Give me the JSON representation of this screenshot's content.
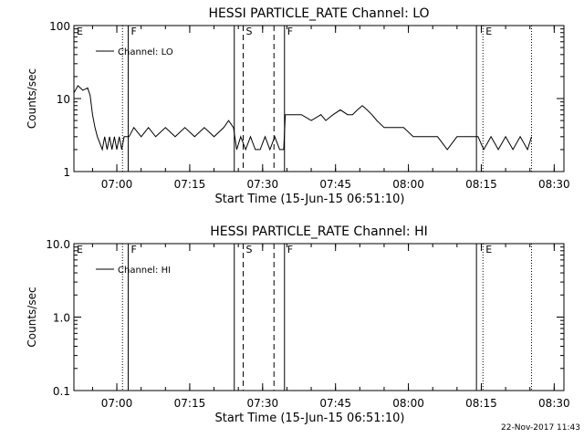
{
  "footer": {
    "timestamp": "22-Nov-2017 11:43"
  },
  "chart_data": [
    {
      "type": "line",
      "title": "HESSI PARTICLE_RATE Channel: LO",
      "xlabel": "Start Time (15-Jun-15 06:51:10)",
      "ylabel": "Counts/sec",
      "y_scale": "log",
      "ylim": [
        1,
        100
      ],
      "xlim": [
        "06:51:10",
        "08:32:00"
      ],
      "x_ticks": [
        "07:00",
        "07:15",
        "07:30",
        "07:45",
        "08:00",
        "08:15",
        "08:30"
      ],
      "y_ticks": [
        "1",
        "10",
        "100"
      ],
      "legend": {
        "label": "Channel: LO",
        "position": "top-left"
      },
      "markers": [
        {
          "label": "E",
          "time": "06:51:10",
          "style": "none"
        },
        {
          "label": "",
          "time": "07:01:10",
          "style": "dotted"
        },
        {
          "label": "F",
          "time": "07:02:20",
          "style": "solid"
        },
        {
          "label": "",
          "time": "07:24:10",
          "style": "solid"
        },
        {
          "label": "S",
          "time": "07:26:00",
          "style": "dashed"
        },
        {
          "label": "",
          "time": "07:32:20",
          "style": "dashed"
        },
        {
          "label": "F",
          "time": "07:34:30",
          "style": "solid"
        },
        {
          "label": "",
          "time": "08:14:00",
          "style": "solid"
        },
        {
          "label": "E",
          "time": "08:15:20",
          "style": "dotted"
        },
        {
          "label": "",
          "time": "08:25:20",
          "style": "dotted"
        }
      ],
      "series": [
        {
          "name": "Channel: LO",
          "x": [
            "06:51:10",
            "06:52:00",
            "06:53:00",
            "06:54:00",
            "06:54:30",
            "06:55:00",
            "06:55:30",
            "06:56:00",
            "06:57:00",
            "06:57:30",
            "06:58:00",
            "06:58:30",
            "06:59:00",
            "06:59:30",
            "07:00:00",
            "07:00:30",
            "07:01:00",
            "07:01:30",
            "07:02:00",
            "07:02:30",
            "07:03:30",
            "07:05:00",
            "07:06:30",
            "07:08:00",
            "07:10:00",
            "07:12:00",
            "07:14:00",
            "07:16:00",
            "07:18:00",
            "07:20:00",
            "07:22:00",
            "07:23:00",
            "07:24:00",
            "07:24:40",
            "07:25:30",
            "07:26:30",
            "07:27:30",
            "07:28:30",
            "07:29:30",
            "07:30:30",
            "07:31:30",
            "07:32:30",
            "07:33:30",
            "07:34:20",
            "07:34:40",
            "07:36:00",
            "07:38:00",
            "07:40:00",
            "07:42:00",
            "07:43:00",
            "07:44:30",
            "07:46:00",
            "07:47:30",
            "07:48:30",
            "07:49:30",
            "07:50:30",
            "07:51:30",
            "07:52:30",
            "07:53:30",
            "07:55:00",
            "07:57:00",
            "07:59:00",
            "08:01:00",
            "08:02:00",
            "08:04:00",
            "08:06:00",
            "08:08:00",
            "08:10:00",
            "08:12:00",
            "08:13:50",
            "08:14:20",
            "08:15:30",
            "08:17:00",
            "08:18:30",
            "08:20:00",
            "08:21:30",
            "08:23:00",
            "08:24:30",
            "08:25:20"
          ],
          "values": [
            12,
            15,
            13,
            14,
            11,
            6,
            4,
            3,
            2,
            3,
            2,
            3,
            2,
            3,
            2,
            3,
            2,
            3,
            3,
            3,
            4,
            3,
            4,
            3,
            4,
            3,
            4,
            3,
            4,
            3,
            4,
            5,
            4,
            2,
            3,
            2,
            3,
            2,
            2,
            3,
            2,
            3,
            2,
            2,
            6,
            6,
            6,
            5,
            6,
            5,
            6,
            7,
            6,
            6,
            7,
            8,
            7,
            6,
            5,
            4,
            4,
            4,
            3,
            3,
            3,
            3,
            2,
            3,
            3,
            3,
            3,
            2,
            3,
            2,
            3,
            2,
            3,
            2,
            3
          ]
        }
      ]
    },
    {
      "type": "line",
      "title": "HESSI PARTICLE_RATE Channel: HI",
      "xlabel": "Start Time (15-Jun-15 06:51:10)",
      "ylabel": "Counts/sec",
      "y_scale": "log",
      "ylim": [
        0.1,
        10
      ],
      "xlim": [
        "06:51:10",
        "08:32:00"
      ],
      "x_ticks": [
        "07:00",
        "07:15",
        "07:30",
        "07:45",
        "08:00",
        "08:15",
        "08:30"
      ],
      "y_ticks": [
        "0.1",
        "1.0",
        "10.0"
      ],
      "legend": {
        "label": "Channel: HI",
        "position": "top-left"
      },
      "markers": [
        {
          "label": "E",
          "time": "06:51:10",
          "style": "none"
        },
        {
          "label": "",
          "time": "07:01:10",
          "style": "dotted"
        },
        {
          "label": "F",
          "time": "07:02:20",
          "style": "solid"
        },
        {
          "label": "",
          "time": "07:24:10",
          "style": "solid"
        },
        {
          "label": "S",
          "time": "07:26:00",
          "style": "dashed"
        },
        {
          "label": "",
          "time": "07:32:20",
          "style": "dashed"
        },
        {
          "label": "F",
          "time": "07:34:30",
          "style": "solid"
        },
        {
          "label": "",
          "time": "08:14:00",
          "style": "solid"
        },
        {
          "label": "E",
          "time": "08:15:20",
          "style": "dotted"
        },
        {
          "label": "",
          "time": "08:25:20",
          "style": "dotted"
        }
      ],
      "series": []
    }
  ]
}
